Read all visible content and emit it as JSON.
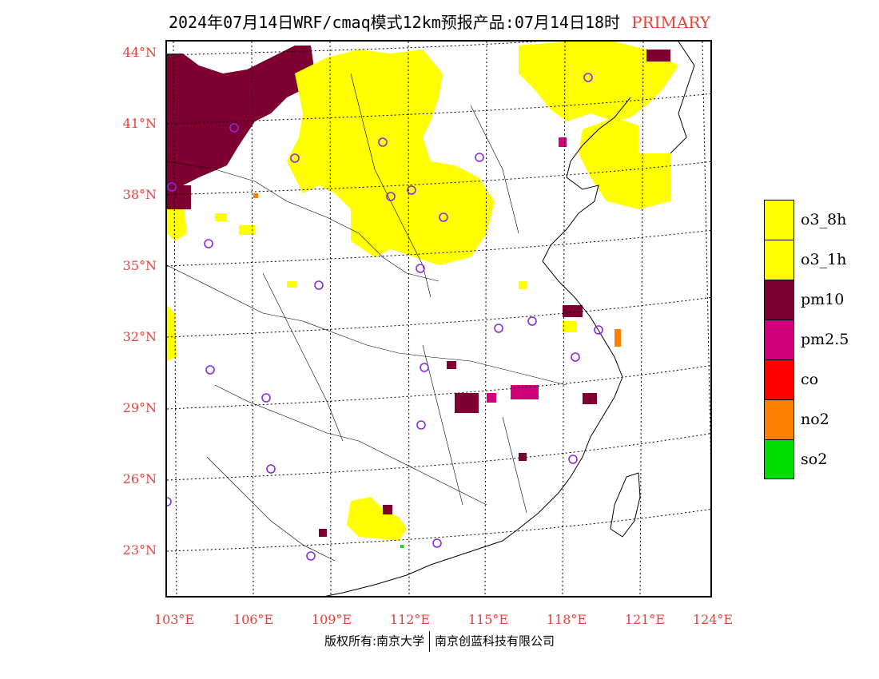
{
  "title": {
    "main": "2024年07月14日WRF/cmaq模式12km预报产品:07月14日18时",
    "tag": "PRIMARY"
  },
  "colors": {
    "o3_8h": "#ffff00",
    "o3_1h": "#ffff00",
    "pm10": "#7d0030",
    "pm2_5": "#d0007c",
    "co": "#ff0000",
    "no2": "#ff7f00",
    "so2": "#00dd00",
    "axis_label": "#e8403a",
    "station": "#8a2be2"
  },
  "lat_labels": [
    "44°N",
    "41°N",
    "38°N",
    "35°N",
    "32°N",
    "29°N",
    "26°N",
    "23°N"
  ],
  "lon_labels": [
    "103°E",
    "106°E",
    "109°E",
    "112°E",
    "115°E",
    "118°E",
    "121°E",
    "124°E"
  ],
  "legend": [
    {
      "label": "o3_8h",
      "color": "#ffff00"
    },
    {
      "label": "o3_1h",
      "color": "#ffff00"
    },
    {
      "label": "pm10",
      "color": "#7d0030"
    },
    {
      "label": "pm2.5",
      "color": "#d0007c"
    },
    {
      "label": "co",
      "color": "#ff0000"
    },
    {
      "label": "no2",
      "color": "#ff7f00"
    },
    {
      "label": "so2",
      "color": "#00dd00"
    }
  ],
  "footer": {
    "left": "版权所有:南京大学",
    "right": "南京创蓝科技有限公司"
  }
}
